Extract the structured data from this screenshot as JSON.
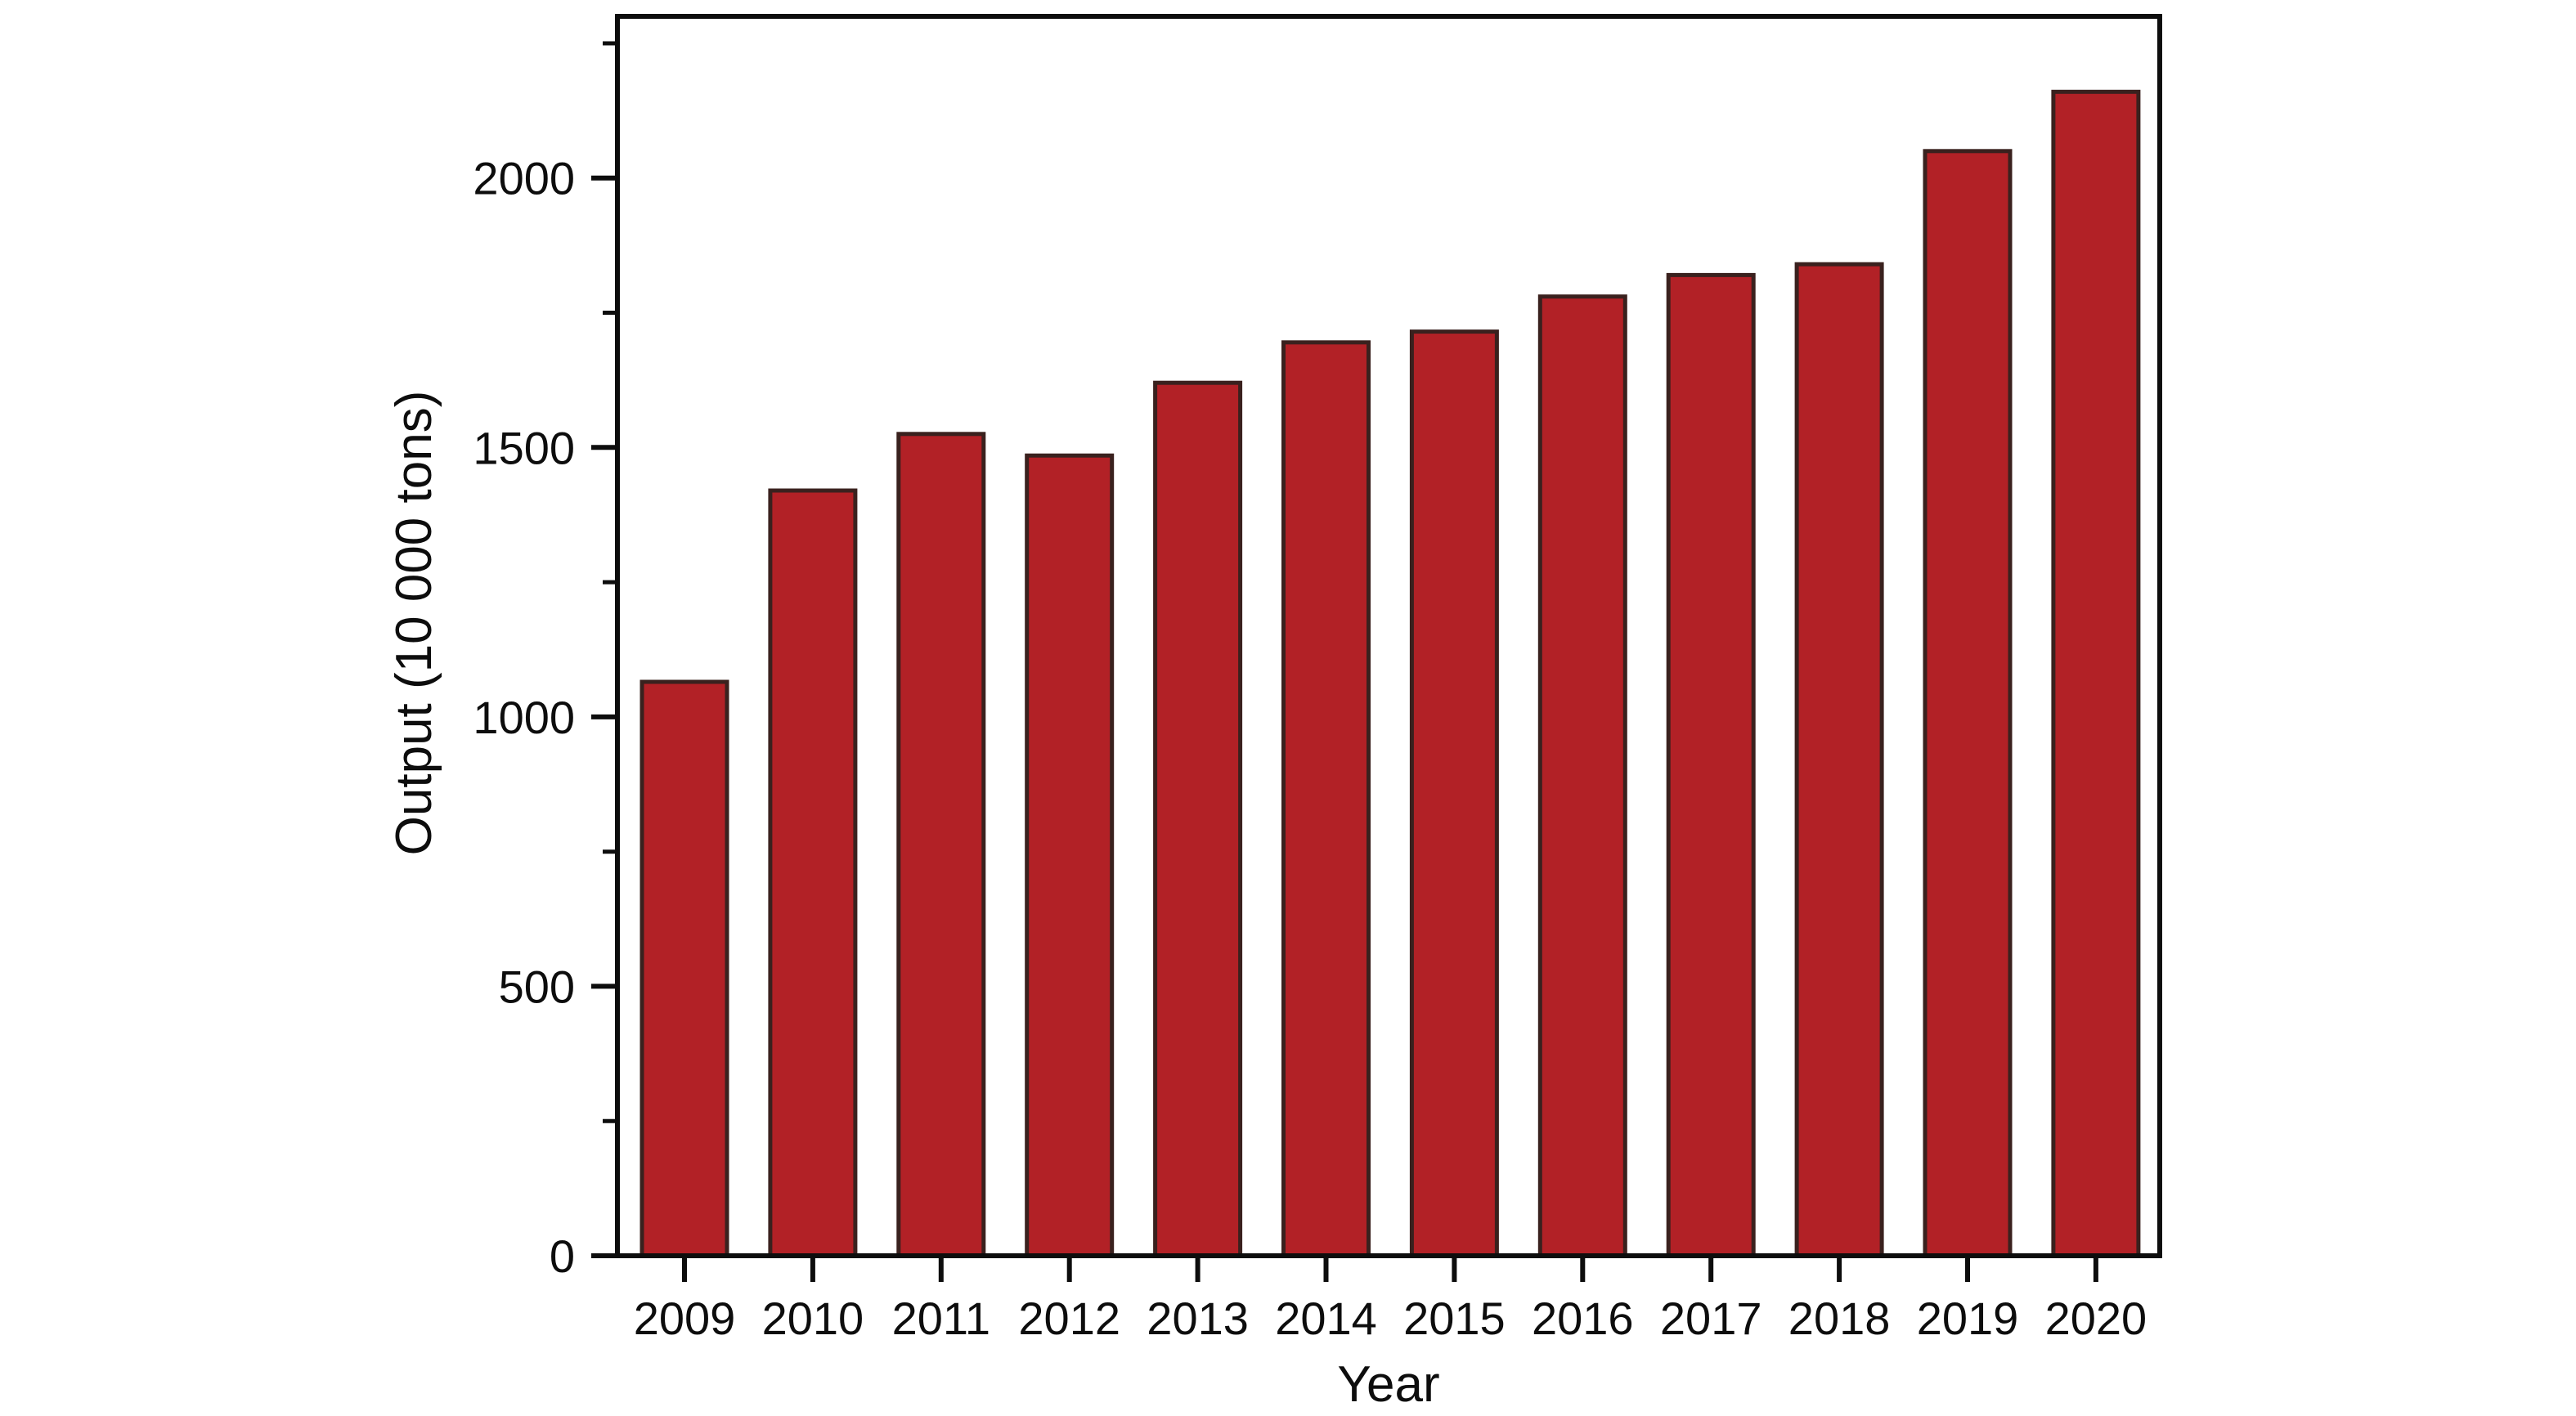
{
  "chart_data": {
    "type": "bar",
    "title": "",
    "xlabel": "Year",
    "ylabel": "Output (10 000 tons)",
    "categories": [
      "2009",
      "2010",
      "2011",
      "2012",
      "2013",
      "2014",
      "2015",
      "2016",
      "2017",
      "2018",
      "2019",
      "2020"
    ],
    "values": [
      1065,
      1420,
      1525,
      1485,
      1620,
      1695,
      1715,
      1780,
      1820,
      1840,
      2050,
      2160
    ],
    "series_name": "Output",
    "ylim": [
      0,
      2300
    ],
    "yticks_major": [
      0,
      500,
      1000,
      1500,
      2000
    ],
    "yticks_minor": [
      250,
      750,
      1250,
      1750,
      2250
    ],
    "grid": false,
    "legend_position": "none",
    "colors": {
      "bar_fill": "#B22126",
      "bar_edge": "#3A211E",
      "axis": "#0d0d0d",
      "background": "#ffffff"
    }
  }
}
